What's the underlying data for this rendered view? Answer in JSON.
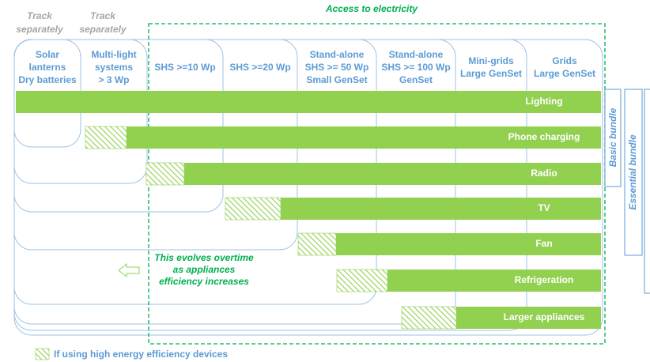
{
  "access_title": "Access to electricity",
  "track_separately": [
    [
      "Track",
      "separately"
    ],
    [
      "Track",
      "separately"
    ]
  ],
  "columns": [
    [
      "Solar",
      "lanterns",
      "Dry batteries"
    ],
    [
      "Multi-light",
      "systems",
      "> 3 Wp"
    ],
    [
      "SHS >=10 Wp"
    ],
    [
      "SHS >=20 Wp"
    ],
    [
      "Stand-alone",
      "SHS >= 50 Wp",
      "Small GenSet"
    ],
    [
      "Stand-alone",
      "SHS >= 100 Wp",
      "GenSet"
    ],
    [
      "Mini-grids",
      "Large GenSet"
    ],
    [
      "Grids",
      "Large GenSet"
    ]
  ],
  "rows": [
    "Lighting",
    "Phone charging",
    "Radio",
    "TV",
    "Fan",
    "Refrigeration",
    "Larger appliances"
  ],
  "groups": [
    "Basic bundle",
    "Essential bundle"
  ],
  "note": [
    "This evolves overtime",
    "as appliances",
    "efficiency increases"
  ],
  "legend": "If using high energy efficiency devices"
}
